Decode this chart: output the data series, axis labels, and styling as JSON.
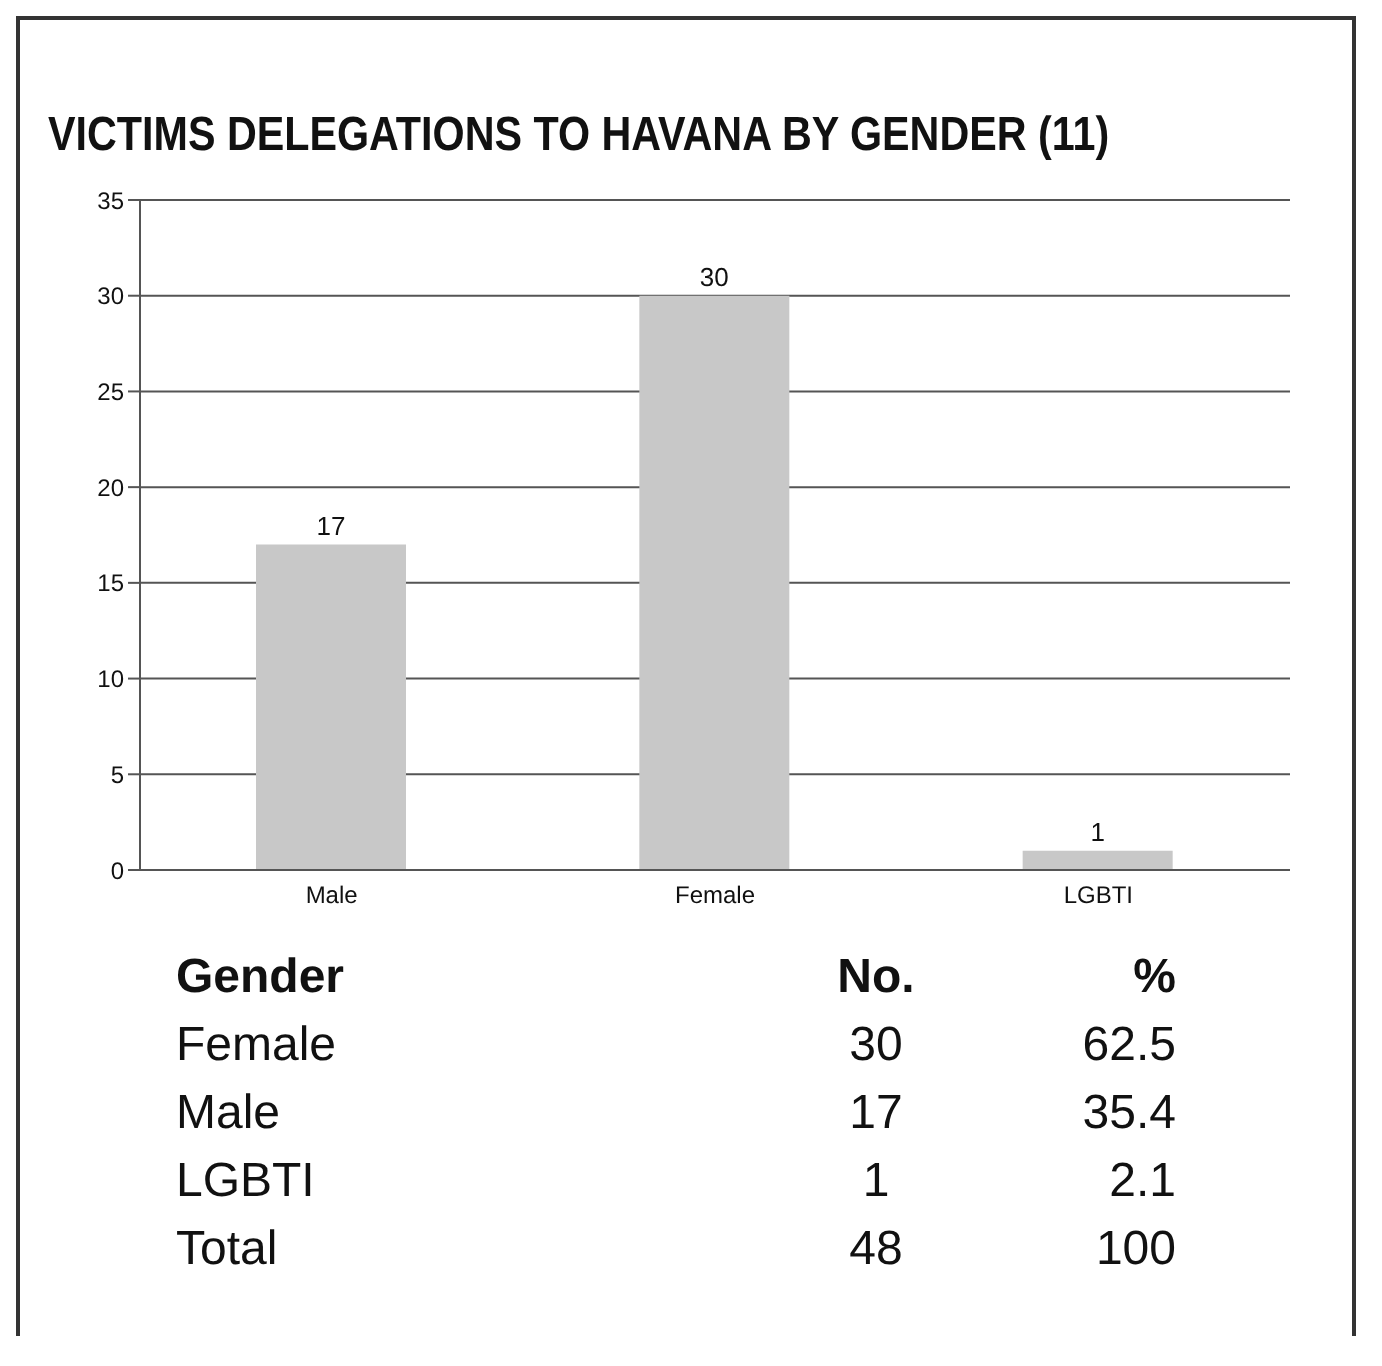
{
  "chart_data": {
    "type": "bar",
    "title": "VICTIMS DELEGATIONS TO HAVANA BY GENDER (11)",
    "categories": [
      "Male",
      "Female",
      "LGBTI"
    ],
    "values": [
      17,
      30,
      1
    ],
    "color": "#c8c8c8",
    "ylim": [
      0,
      35
    ],
    "yticks": [
      0,
      5,
      10,
      15,
      20,
      25,
      30,
      35
    ],
    "grid": "y",
    "data_labels": true,
    "annotations": [
      "Gender",
      "No.",
      "%",
      "Female",
      "30",
      "62.5",
      "Male",
      "17",
      "35.4",
      "LGBTI",
      "1",
      "2.1",
      "Total",
      "48",
      "100"
    ]
  }
}
